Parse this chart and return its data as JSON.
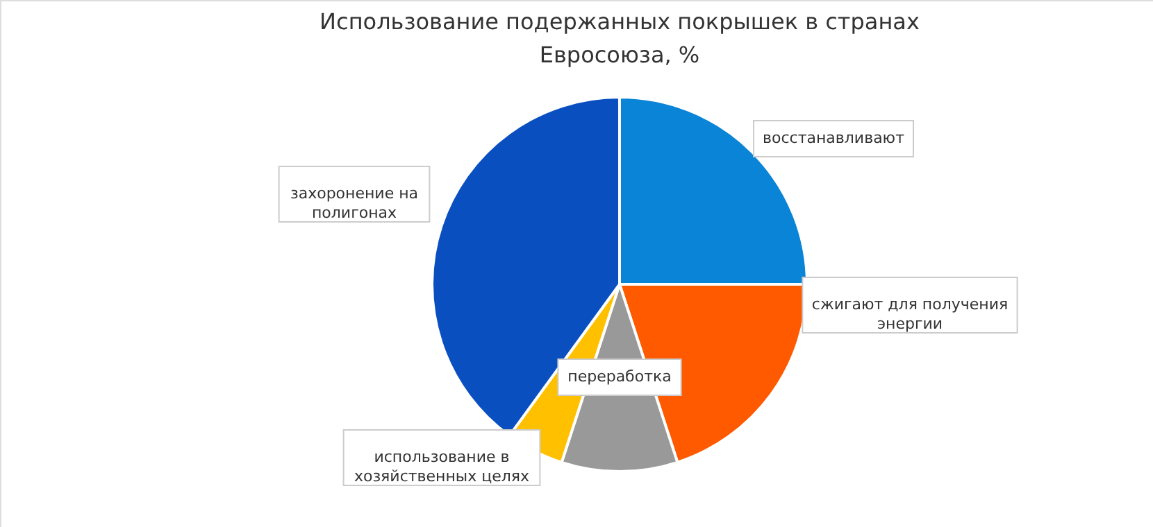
{
  "chart_data": {
    "type": "pie",
    "title": "Использование подержанных покрышек в странах\nЕвросоюза, %",
    "categories": [
      "восстанавливают",
      "сжигают для получения\nэнергии",
      "переработка",
      "использование в\nхозяйственных целях",
      "захоронение на\nполигонах"
    ],
    "values": [
      25,
      20,
      10,
      5,
      40
    ],
    "colors": [
      "#0a84d6",
      "#ff5a00",
      "#999999",
      "#ffc000",
      "#0a4fc0"
    ]
  }
}
